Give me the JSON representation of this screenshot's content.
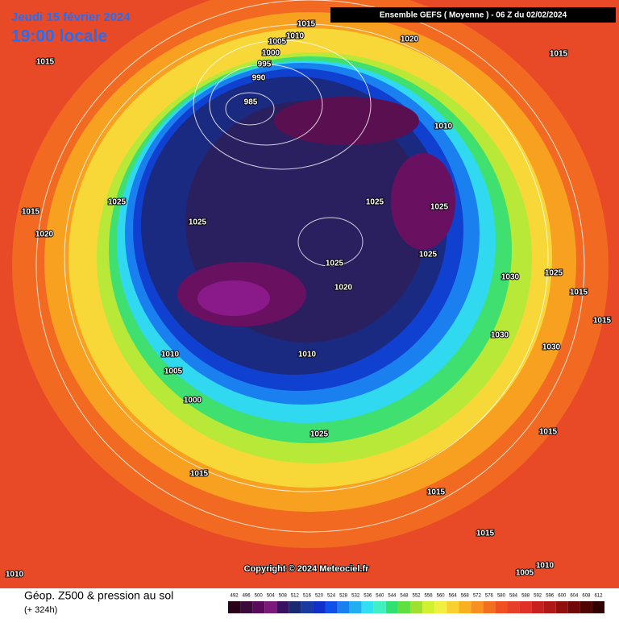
{
  "header": {
    "date": "Jeudi 15 février 2024",
    "time": "19:00 locale",
    "run": "Ensemble GEFS  ( Moyenne )  -  06 Z du 02/02/2024"
  },
  "copyright": "Copyright © 2024 Meteociel.fr",
  "footer": {
    "title": "Géop. Z500 & pression au sol",
    "lead": "(+ 324h)"
  },
  "legend": {
    "levels": [
      492,
      496,
      500,
      504,
      508,
      512,
      516,
      520,
      524,
      528,
      532,
      536,
      540,
      544,
      548,
      552,
      556,
      560,
      564,
      568,
      572,
      576,
      580,
      584,
      588,
      592,
      596,
      600,
      604,
      608,
      612
    ],
    "colors": [
      "#2a0018",
      "#3a0a3a",
      "#5a0a5a",
      "#7a1a7a",
      "#3a1060",
      "#1a2a70",
      "#1a3aa0",
      "#1030c8",
      "#1050e8",
      "#1a80f0",
      "#20b0f0",
      "#30e0f0",
      "#40f0c0",
      "#30e070",
      "#60e040",
      "#a0e030",
      "#d0f030",
      "#f0f040",
      "#f8d030",
      "#f8b020",
      "#f89020",
      "#f07020",
      "#f05020",
      "#e84028",
      "#e03028",
      "#c82020",
      "#b01818",
      "#901010",
      "#700808",
      "#500404",
      "#300000"
    ]
  },
  "isobars": [
    1015,
    1010,
    1005,
    1020,
    1015,
    1015,
    1000,
    995,
    990,
    985,
    1010,
    1025,
    1025,
    1025,
    1015,
    1025,
    1020,
    1025,
    1025,
    1030,
    1025,
    1020,
    1015,
    1015,
    1030,
    1030,
    1010,
    1010,
    1005,
    1000,
    1025,
    1015,
    1015,
    1015,
    1015,
    1010,
    1005,
    1010
  ]
}
